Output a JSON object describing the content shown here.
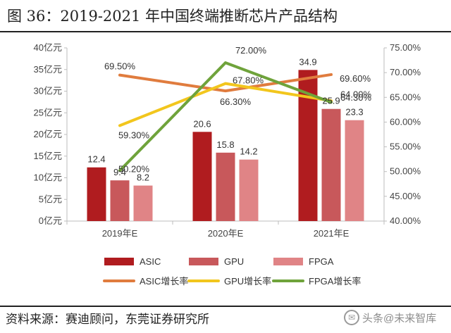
{
  "title": "图 36：2019-2021 年中国终端推断芯片产品结构",
  "source": "资料来源：赛迪顾问，东莞证券研究所",
  "watermark": {
    "icon": "wechat-icon",
    "text": "头条@未来智库"
  },
  "chart_data": {
    "type": "bar+line",
    "categories": [
      "2019年E",
      "2020年E",
      "2021年E"
    ],
    "left_axis": {
      "ticks": [
        "0亿元",
        "5亿元",
        "10亿元",
        "15亿元",
        "20亿元",
        "25亿元",
        "30亿元",
        "35亿元",
        "40亿元"
      ],
      "ylim": [
        0,
        40
      ]
    },
    "right_axis": {
      "ticks": [
        "40.00%",
        "45.00%",
        "50.00%",
        "55.00%",
        "60.00%",
        "65.00%",
        "70.00%",
        "75.00%"
      ],
      "ylim": [
        40,
        75
      ]
    },
    "bar_series": [
      {
        "name": "ASIC",
        "values": [
          12.4,
          20.6,
          34.9
        ],
        "labels": [
          "12.4",
          "20.6",
          "34.9"
        ],
        "color": "#b01c1f"
      },
      {
        "name": "GPU",
        "values": [
          9.4,
          15.8,
          25.9
        ],
        "labels": [
          "9.4",
          "15.8",
          "25.9"
        ],
        "color": "#c8585b"
      },
      {
        "name": "FPGA",
        "values": [
          8.2,
          14.2,
          23.3
        ],
        "labels": [
          "8.2",
          "14.2",
          "23.3"
        ],
        "color": "#e08486"
      }
    ],
    "line_series": [
      {
        "name": "ASIC增长率",
        "values": [
          69.5,
          66.3,
          69.6
        ],
        "labels": [
          "69.50%",
          "66.30%",
          "69.60%"
        ],
        "color": "#e07c3e"
      },
      {
        "name": "GPU增长率",
        "values": [
          59.3,
          67.8,
          64.3
        ],
        "labels": [
          "59.30%",
          "67.80%",
          "64.30%"
        ],
        "color": "#f2c61d"
      },
      {
        "name": "FPGA增长率",
        "values": [
          50.2,
          72.0,
          64.0
        ],
        "labels": [
          "50.20%",
          "72.00%",
          "64.00%"
        ],
        "color": "#6fa33b"
      }
    ],
    "grid": false,
    "legend_position": "bottom"
  }
}
